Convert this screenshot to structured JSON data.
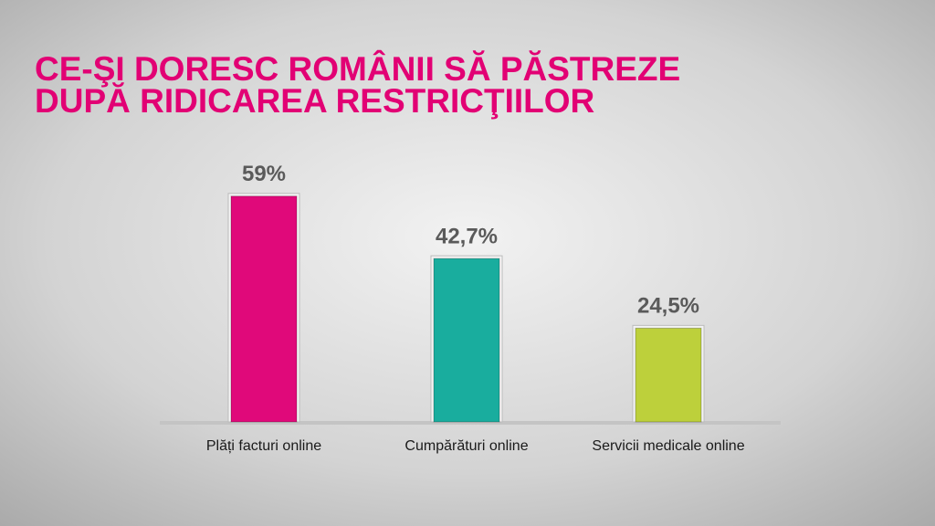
{
  "chart_data": {
    "type": "bar",
    "title": [
      "CE-ŞI DORESC ROMÂNII SĂ PĂSTREZE",
      "DUPĂ RIDICAREA RESTRICŢIILOR"
    ],
    "categories": [
      "Plăți facturi online",
      "Cumpărături online",
      "Servicii medicale online"
    ],
    "values": [
      59,
      42.7,
      24.5
    ],
    "value_labels": [
      "59%",
      "42,7%",
      "24,5%"
    ],
    "colors": [
      "#e0097a",
      "#19ad9e",
      "#bdd03b"
    ]
  }
}
